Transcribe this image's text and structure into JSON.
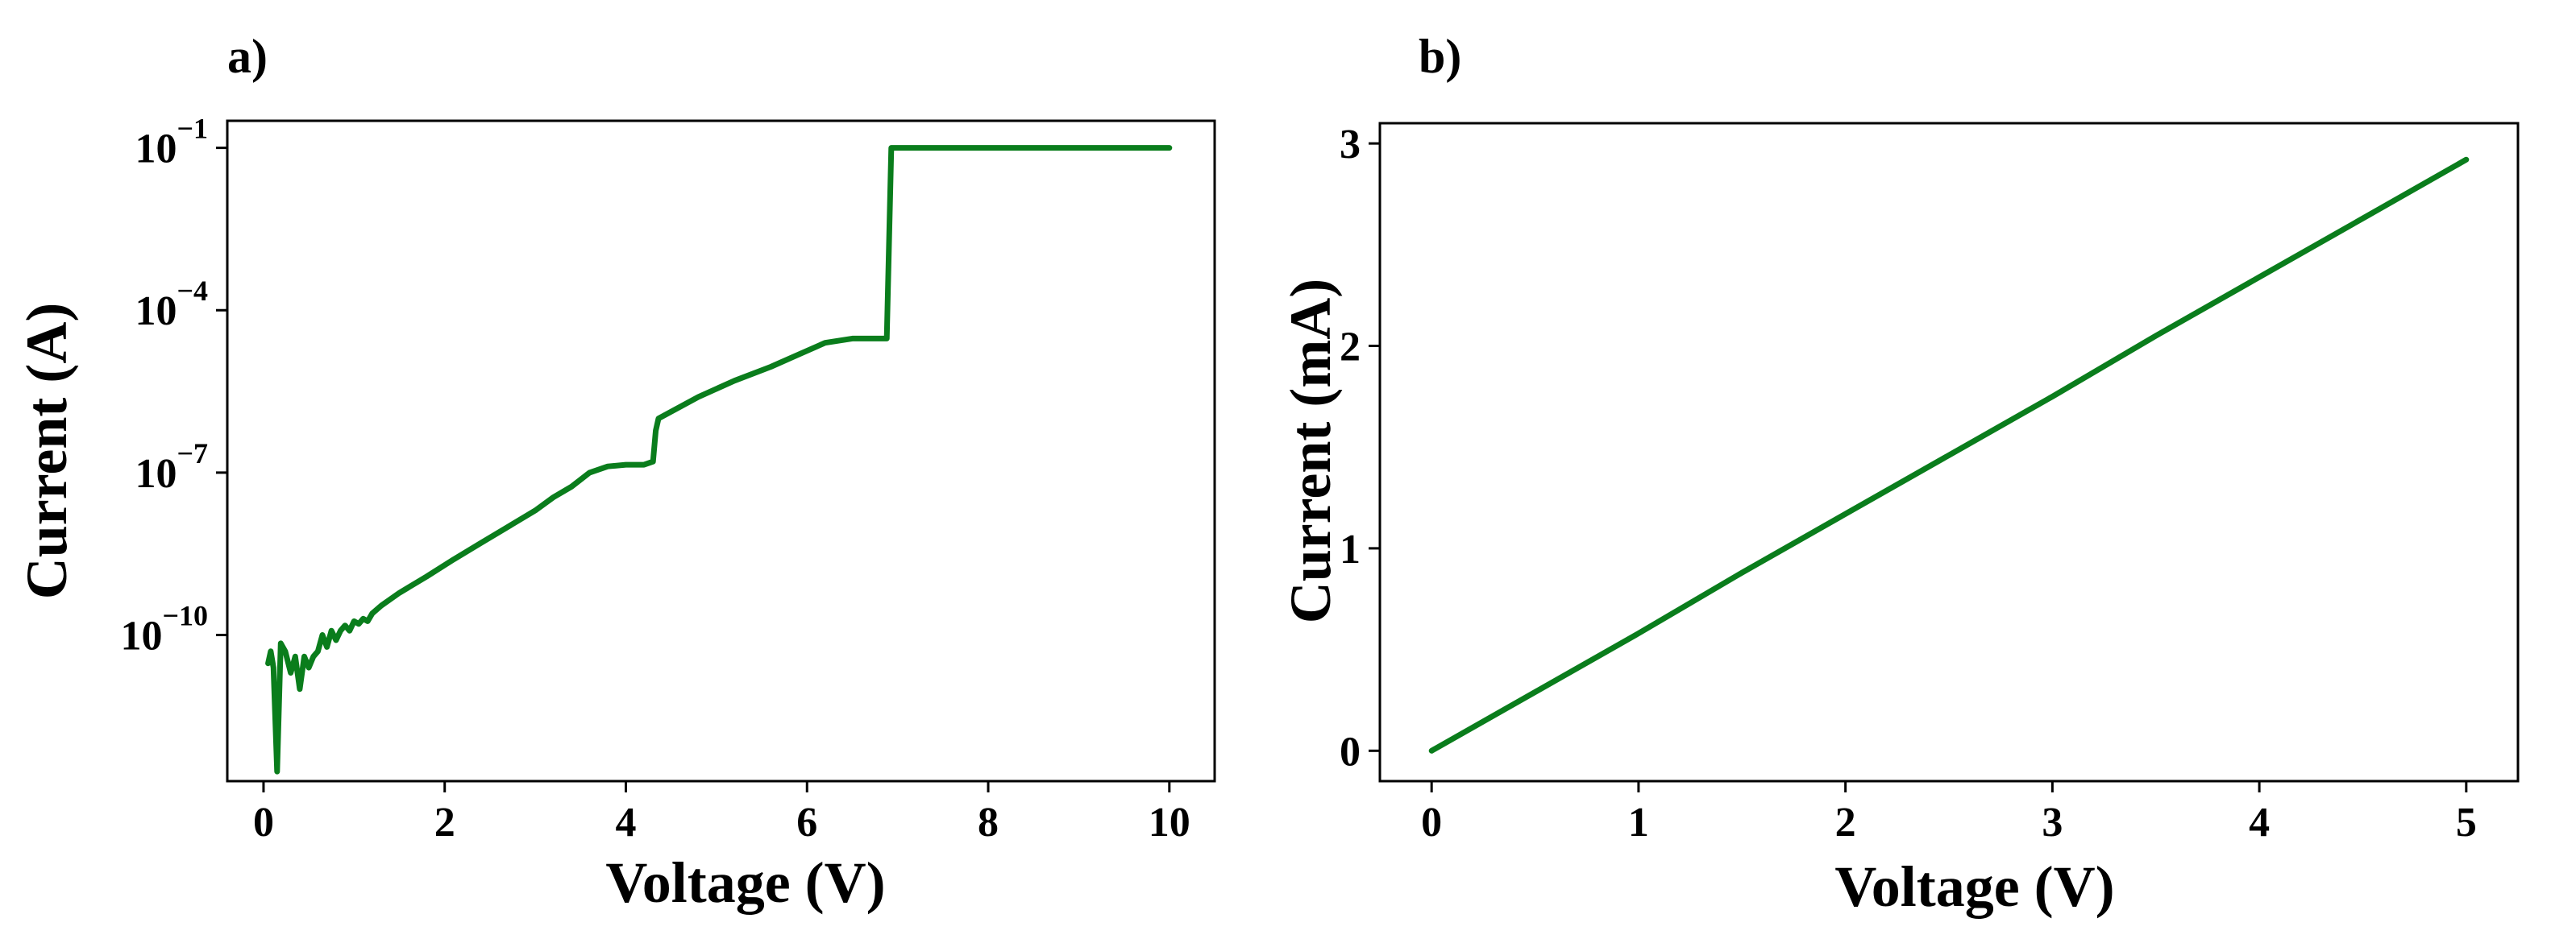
{
  "chart_data": [
    {
      "panel_label": "a)",
      "type": "line",
      "title": "",
      "xlabel": "Voltage (V)",
      "ylabel": "Current (A)",
      "xlim": [
        -0.4,
        10.5
      ],
      "ylim": [
        -12.7,
        -0.5
      ],
      "y_scale": "log",
      "grid": false,
      "xticks": [
        0,
        2,
        4,
        6,
        8,
        10
      ],
      "xtick_labels": [
        "0",
        "2",
        "4",
        "6",
        "8",
        "10"
      ],
      "yticks": [
        -10,
        -7,
        -4,
        -1
      ],
      "ytick_labels": [
        {
          "base": "10",
          "exp": "−10"
        },
        {
          "base": "10",
          "exp": "−7"
        },
        {
          "base": "10",
          "exp": "−4"
        },
        {
          "base": "10",
          "exp": "−1"
        }
      ],
      "series": [
        {
          "color": "#0a7d1c",
          "x": [
            0.05,
            0.08,
            0.11,
            0.15,
            0.19,
            0.24,
            0.3,
            0.35,
            0.4,
            0.45,
            0.5,
            0.55,
            0.6,
            0.65,
            0.7,
            0.75,
            0.8,
            0.85,
            0.9,
            0.95,
            1.0,
            1.05,
            1.1,
            1.15,
            1.2,
            1.3,
            1.5,
            1.8,
            2.1,
            2.4,
            2.7,
            3.0,
            3.2,
            3.4,
            3.6,
            3.8,
            4.0,
            4.2,
            4.3,
            4.33,
            4.36,
            4.8,
            5.2,
            5.6,
            5.9,
            6.2,
            6.5,
            6.8,
            6.88,
            6.93,
            7.2,
            8.0,
            9.0,
            10.0
          ],
          "y": [
            3e-11,
            5e-11,
            2.5e-11,
            3e-13,
            7e-11,
            5e-11,
            2e-11,
            4e-11,
            1e-11,
            4e-11,
            2.5e-11,
            4e-11,
            5e-11,
            1e-10,
            6e-11,
            1.2e-10,
            8e-11,
            1.2e-10,
            1.5e-10,
            1.2e-10,
            1.8e-10,
            1.6e-10,
            2e-10,
            1.8e-10,
            2.5e-10,
            3.5e-10,
            6e-10,
            1.2e-09,
            2.5e-09,
            5e-09,
            1e-08,
            2e-08,
            3.5e-08,
            5.5e-08,
            1e-07,
            1.3e-07,
            1.4e-07,
            1.4e-07,
            1.6e-07,
            6e-07,
            1e-06,
            2.5e-06,
            5e-06,
            9e-06,
            1.5e-05,
            2.5e-05,
            3e-05,
            3e-05,
            3e-05,
            0.1,
            0.1,
            0.1,
            0.1,
            0.1
          ]
        }
      ]
    },
    {
      "panel_label": "b)",
      "type": "line",
      "title": "",
      "xlabel": "Voltage (V)",
      "ylabel": "Current (mA)",
      "xlim": [
        -0.25,
        5.25
      ],
      "ylim": [
        -0.15,
        3.1
      ],
      "grid": false,
      "xticks": [
        0,
        1,
        2,
        3,
        4,
        5
      ],
      "xtick_labels": [
        "0",
        "1",
        "2",
        "3",
        "4",
        "5"
      ],
      "yticks": [
        0,
        1,
        2,
        3
      ],
      "ytick_labels": [
        "0",
        "1",
        "2",
        "3"
      ],
      "series": [
        {
          "color": "#0a7d1c",
          "x": [
            0,
            0.5,
            1.0,
            1.5,
            2.0,
            2.5,
            3.0,
            3.5,
            4.0,
            4.5,
            5.0
          ],
          "y": [
            0,
            0.29,
            0.58,
            0.88,
            1.17,
            1.46,
            1.75,
            2.05,
            2.34,
            2.63,
            2.92
          ]
        }
      ]
    }
  ]
}
